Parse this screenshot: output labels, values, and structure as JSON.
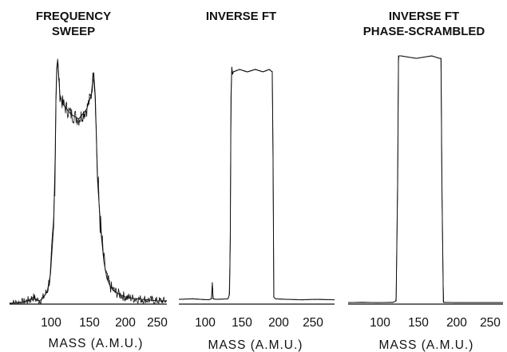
{
  "chart_data": [
    {
      "type": "line",
      "title_lines": [
        "FREQUENCY",
        "SWEEP"
      ],
      "xlabel": "MASS (A.M.U.)",
      "xticks": [
        100,
        150,
        200,
        250
      ],
      "xlim": [
        62,
        262
      ],
      "ylim": [
        0,
        1
      ],
      "grid": false,
      "series": [
        {
          "x": [
            62,
            80,
            88,
            92,
            96,
            100,
            104,
            110,
            114,
            118,
            120,
            121,
            122,
            123,
            124,
            126,
            130,
            140,
            150,
            160,
            166,
            168,
            169,
            170,
            171,
            172,
            174,
            178,
            182,
            186,
            190,
            195,
            200,
            210,
            220,
            235,
            250,
            262
          ],
          "y": [
            0.0,
            0.005,
            0.015,
            0.025,
            0.015,
            0.01,
            0.02,
            0.05,
            0.12,
            0.32,
            0.6,
            0.85,
            0.97,
            1.0,
            0.96,
            0.86,
            0.82,
            0.78,
            0.76,
            0.8,
            0.86,
            0.93,
            0.95,
            0.9,
            0.85,
            0.72,
            0.5,
            0.3,
            0.17,
            0.1,
            0.07,
            0.05,
            0.04,
            0.025,
            0.02,
            0.015,
            0.01,
            0.01
          ]
        }
      ]
    },
    {
      "type": "line",
      "title_lines": [
        "INVERSE FT"
      ],
      "xlabel": "MASS (A.M.U.)",
      "xticks": [
        100,
        150,
        200,
        250
      ],
      "xlim": [
        62,
        262
      ],
      "ylim": [
        0,
        1
      ],
      "grid": false,
      "series": [
        {
          "x": [
            62,
            80,
            100,
            104,
            105,
            106,
            110,
            125,
            127,
            128,
            129,
            130,
            131,
            132,
            140,
            150,
            160,
            170,
            178,
            182,
            183,
            184,
            186,
            200,
            220,
            240,
            262
          ],
          "y": [
            0.01,
            0.012,
            0.008,
            0.012,
            0.08,
            0.012,
            0.01,
            0.012,
            0.03,
            0.25,
            0.85,
            0.98,
            0.95,
            0.96,
            0.97,
            0.96,
            0.97,
            0.96,
            0.97,
            0.96,
            0.6,
            0.02,
            0.012,
            0.01,
            0.008,
            0.01,
            0.008
          ]
        }
      ]
    },
    {
      "type": "line",
      "title_lines": [
        "INVERSE FT",
        "PHASE-SCRAMBLED"
      ],
      "xlabel": "MASS (A.M.U.)",
      "xticks": [
        100,
        150,
        200,
        250
      ],
      "xlim": [
        62,
        262
      ],
      "ylim": [
        0,
        1
      ],
      "grid": false,
      "series": [
        {
          "x": [
            62,
            80,
            100,
            120,
            124,
            126,
            127,
            130,
            150,
            170,
            180,
            182,
            183,
            185,
            200,
            230,
            262
          ],
          "y": [
            0.003,
            0.004,
            0.003,
            0.004,
            0.01,
            0.5,
            1.0,
            1.0,
            0.99,
            1.0,
            0.99,
            0.99,
            0.5,
            0.004,
            0.003,
            0.003,
            0.003
          ]
        }
      ]
    }
  ]
}
